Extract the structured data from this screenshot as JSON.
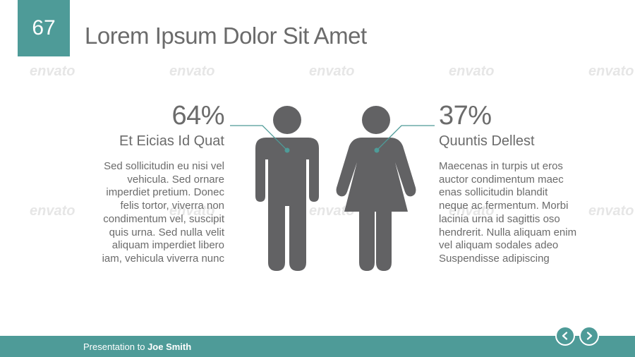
{
  "slide": {
    "number": "67",
    "title": "Lorem Ipsum Dolor Sit Amet"
  },
  "watermark": {
    "text": "envato"
  },
  "male": {
    "percent": "64%",
    "label": "Et Eicias Id Quat",
    "lines": [
      "Sed sollicitudin eu nisi vel",
      "vehicula. Sed ornare",
      "imperdiet pretium. Donec",
      "felis tortor, viverra non",
      "condimentum vel, suscipit",
      "quis urna. Sed nulla velit",
      "aliquam imperdiet libero",
      "iam, vehicula viverra nunc"
    ]
  },
  "female": {
    "percent": "37%",
    "label": "Quuntis Dellest",
    "lines": [
      "Maecenas in turpis ut eros",
      "auctor condimentum maec",
      "enas sollicitudin blandit",
      "neque ac fermentum. Morbi",
      "lacinia urna id sagittis oso",
      "hendrerit. Nulla aliquam enim",
      "vel aliquam sodales adeo",
      "Suspendisse adipiscing"
    ]
  },
  "footer": {
    "prefix": "Presentation to ",
    "name": "Joe Smith"
  },
  "nav": {
    "prev_icon": "chevron-left-icon",
    "next_icon": "chevron-right-icon",
    "prev_glyph": "<",
    "next_glyph": ">"
  },
  "colors": {
    "accent": "#4e9b98",
    "figure": "#626264",
    "text": "#6b6b6b"
  }
}
